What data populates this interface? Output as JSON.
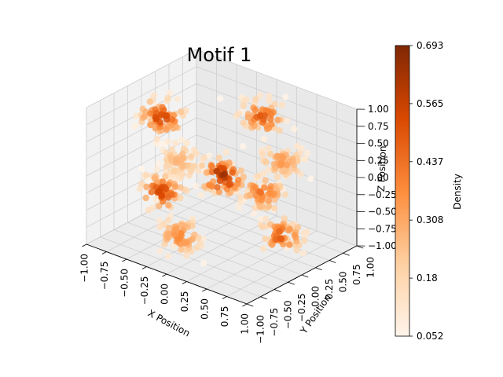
{
  "chart_data": {
    "type": "scatter",
    "projection": "3d",
    "title": "Motif 1",
    "xlabel": "X Position",
    "ylabel": "Y Position",
    "zlabel": "Z Position",
    "xlim": [
      -1.0,
      1.0
    ],
    "ylim": [
      -1.0,
      1.0
    ],
    "zlim": [
      -1.0,
      1.0
    ],
    "x_ticks": [
      "−1.00",
      "−0.75",
      "−0.50",
      "−0.25",
      "0.00",
      "0.25",
      "0.50",
      "0.75",
      "1.00"
    ],
    "y_ticks": [
      "−1.00",
      "−0.75",
      "−0.50",
      "−0.25",
      "0.00",
      "0.25",
      "0.50",
      "0.75",
      "1.00"
    ],
    "z_ticks": [
      "−1.00",
      "−0.75",
      "−0.50",
      "−0.25",
      "0.00",
      "0.25",
      "0.50",
      "0.75",
      "1.00"
    ],
    "grid": true,
    "colormap": "Oranges",
    "colorbar": {
      "label": "Density",
      "min": 0.052,
      "max": 0.693,
      "ticks": [
        "0.052",
        "0.18",
        "0.308",
        "0.437",
        "0.565",
        "0.693"
      ]
    },
    "clusters": [
      {
        "x": 0.0,
        "y": 0.0,
        "z": 0.0,
        "density": 0.69
      },
      {
        "x": -0.75,
        "y": 0.0,
        "z": 0.55,
        "density": 0.56
      },
      {
        "x": 0.0,
        "y": 0.75,
        "z": 0.55,
        "density": 0.5
      },
      {
        "x": 0.75,
        "y": 0.0,
        "z": 0.55,
        "density": 0.35
      },
      {
        "x": 0.0,
        "y": -0.75,
        "z": 0.55,
        "density": 0.3
      },
      {
        "x": -0.75,
        "y": 0.0,
        "z": -0.55,
        "density": 0.55
      },
      {
        "x": 0.0,
        "y": 0.75,
        "z": -0.55,
        "density": 0.45
      },
      {
        "x": 0.75,
        "y": 0.0,
        "z": -0.55,
        "density": 0.5
      },
      {
        "x": 0.0,
        "y": -0.75,
        "z": -0.55,
        "density": 0.4
      }
    ],
    "cluster_spread": 0.12
  }
}
